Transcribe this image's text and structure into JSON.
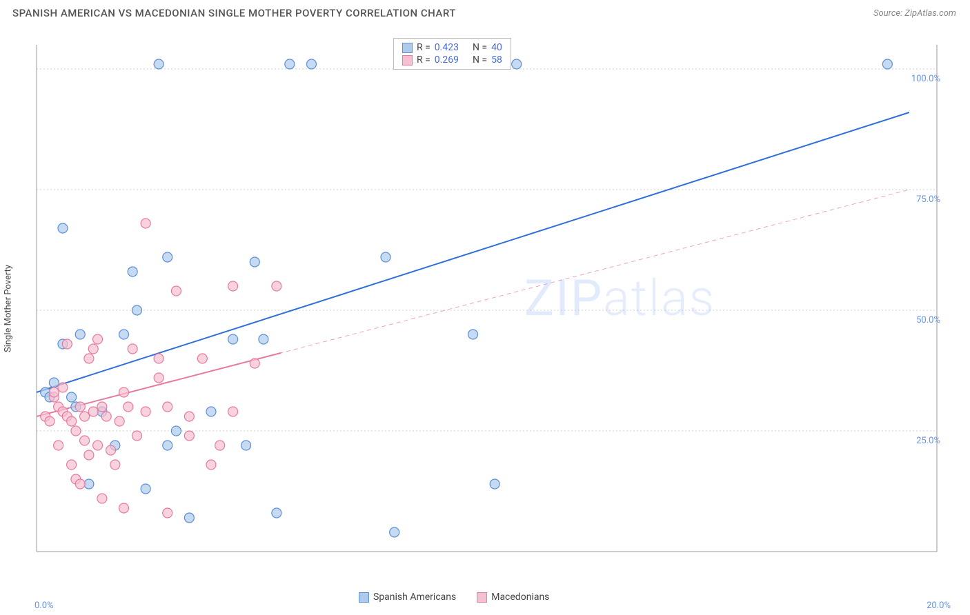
{
  "title": "SPANISH AMERICAN VS MACEDONIAN SINGLE MOTHER POVERTY CORRELATION CHART",
  "source": "Source: ZipAtlas.com",
  "y_label": "Single Mother Poverty",
  "watermark_main": "ZIP",
  "watermark_sub": "atlas",
  "chart": {
    "type": "scatter",
    "xlim": [
      0,
      20
    ],
    "ylim": [
      0,
      105
    ],
    "x_ticks": [
      {
        "v": 0,
        "l": "0.0%"
      },
      {
        "v": 20,
        "l": "20.0%"
      }
    ],
    "y_ticks": [
      {
        "v": 25,
        "l": "25.0%"
      },
      {
        "v": 50,
        "l": "50.0%"
      },
      {
        "v": 75,
        "l": "75.0%"
      },
      {
        "v": 100,
        "l": "100.0%"
      }
    ],
    "grid_color": "#d0d0d0",
    "axis_color": "#999",
    "marker_radius": 7,
    "marker_stroke_width": 1.2,
    "trend_line_width_solid": 2,
    "trend_line_width_dash": 1
  },
  "series": [
    {
      "name": "Spanish Americans",
      "color_fill": "#aecbeb",
      "color_stroke": "#5b8fd6",
      "line_color": "#2e6fd9",
      "r": "0.423",
      "n": "40",
      "trend": {
        "x1": 0,
        "y1": 33,
        "x2": 20,
        "y2": 91
      },
      "trend_extent": 1.0,
      "points": [
        [
          0.2,
          33
        ],
        [
          0.3,
          32
        ],
        [
          0.4,
          35
        ],
        [
          0.6,
          43
        ],
        [
          0.6,
          67
        ],
        [
          0.8,
          32
        ],
        [
          0.9,
          30
        ],
        [
          1.0,
          45
        ],
        [
          1.2,
          14
        ],
        [
          1.5,
          29
        ],
        [
          1.8,
          22
        ],
        [
          2.0,
          45
        ],
        [
          2.2,
          58
        ],
        [
          2.3,
          50
        ],
        [
          2.5,
          13
        ],
        [
          2.8,
          101
        ],
        [
          3.0,
          61
        ],
        [
          3.0,
          22
        ],
        [
          3.2,
          25
        ],
        [
          3.5,
          7
        ],
        [
          4.0,
          29
        ],
        [
          4.5,
          44
        ],
        [
          4.8,
          22
        ],
        [
          5.0,
          60
        ],
        [
          5.2,
          44
        ],
        [
          5.5,
          8
        ],
        [
          5.8,
          101
        ],
        [
          6.3,
          101
        ],
        [
          8.0,
          61
        ],
        [
          8.2,
          4
        ],
        [
          8.5,
          101
        ],
        [
          10.0,
          45
        ],
        [
          10.5,
          14
        ],
        [
          11.0,
          101
        ],
        [
          19.5,
          101
        ]
      ]
    },
    {
      "name": "Macedonians",
      "color_fill": "#f5c0d0",
      "color_stroke": "#e77aa0",
      "line_color": "#e77aa0",
      "r": "0.269",
      "n": "58",
      "trend": {
        "x1": 0,
        "y1": 28,
        "x2": 20,
        "y2": 75
      },
      "trend_extent": 0.28,
      "points": [
        [
          0.2,
          28
        ],
        [
          0.3,
          27
        ],
        [
          0.4,
          32
        ],
        [
          0.4,
          33
        ],
        [
          0.5,
          30
        ],
        [
          0.5,
          22
        ],
        [
          0.6,
          34
        ],
        [
          0.6,
          29
        ],
        [
          0.7,
          28
        ],
        [
          0.7,
          43
        ],
        [
          0.8,
          18
        ],
        [
          0.8,
          27
        ],
        [
          0.9,
          15
        ],
        [
          0.9,
          25
        ],
        [
          1.0,
          14
        ],
        [
          1.0,
          30
        ],
        [
          1.1,
          28
        ],
        [
          1.1,
          23
        ],
        [
          1.2,
          20
        ],
        [
          1.2,
          40
        ],
        [
          1.3,
          29
        ],
        [
          1.3,
          42
        ],
        [
          1.4,
          44
        ],
        [
          1.4,
          22
        ],
        [
          1.5,
          11
        ],
        [
          1.5,
          30
        ],
        [
          1.6,
          28
        ],
        [
          1.7,
          21
        ],
        [
          1.8,
          18
        ],
        [
          1.9,
          27
        ],
        [
          2.0,
          9
        ],
        [
          2.0,
          33
        ],
        [
          2.1,
          30
        ],
        [
          2.2,
          42
        ],
        [
          2.3,
          24
        ],
        [
          2.5,
          29
        ],
        [
          2.5,
          68
        ],
        [
          2.8,
          40
        ],
        [
          2.8,
          36
        ],
        [
          3.0,
          30
        ],
        [
          3.0,
          8
        ],
        [
          3.2,
          54
        ],
        [
          3.5,
          24
        ],
        [
          3.5,
          28
        ],
        [
          3.8,
          40
        ],
        [
          4.0,
          18
        ],
        [
          4.2,
          22
        ],
        [
          4.5,
          29
        ],
        [
          4.5,
          55
        ],
        [
          5.0,
          39
        ],
        [
          5.5,
          55
        ]
      ]
    }
  ],
  "legend_bottom": [
    {
      "label": "Spanish Americans",
      "fill": "#aecbeb",
      "stroke": "#5b8fd6"
    },
    {
      "label": "Macedonians",
      "fill": "#f5c0d0",
      "stroke": "#e77aa0"
    }
  ]
}
